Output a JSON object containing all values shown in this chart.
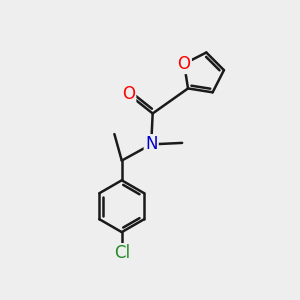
{
  "bg_color": "#eeeeee",
  "bond_color": "#1a1a1a",
  "bond_width": 1.8,
  "atom_colors": {
    "O_carbonyl": "#ff0000",
    "O_furan": "#ff0000",
    "N": "#0000cc",
    "Cl": "#228B22",
    "C": "#1a1a1a"
  },
  "font_size": 11,
  "figsize": [
    3.0,
    3.0
  ],
  "dpi": 100
}
